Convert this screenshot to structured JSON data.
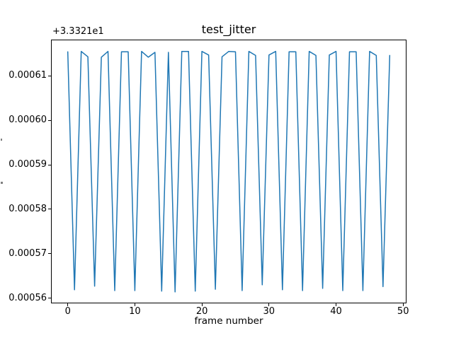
{
  "chart_data": {
    "type": "line",
    "title": "test_jitter",
    "xlabel": "frame number",
    "ylabel": "",
    "y_axis_offset_text": "+3.3321e1",
    "y_axis_offset_value": 33.321,
    "values_relative_to_offset": true,
    "line_color": "#1f77b4",
    "grid": false,
    "legend_position": "none",
    "xlim": [
      -2.4,
      50.4
    ],
    "ylim": [
      0.000559,
      0.000618
    ],
    "xticks": [
      {
        "value": 0,
        "label": "0"
      },
      {
        "value": 10,
        "label": "10"
      },
      {
        "value": 20,
        "label": "20"
      },
      {
        "value": 30,
        "label": "30"
      },
      {
        "value": 40,
        "label": "40"
      },
      {
        "value": 50,
        "label": "50"
      }
    ],
    "yticks": [
      {
        "value": 0.00056,
        "label": "0.00056"
      },
      {
        "value": 0.00057,
        "label": "0.00057"
      },
      {
        "value": 0.00058,
        "label": "0.00058"
      },
      {
        "value": 0.00059,
        "label": "0.00059"
      },
      {
        "value": 0.0006,
        "label": "0.00060"
      },
      {
        "value": 0.00061,
        "label": "0.00061"
      }
    ],
    "x": [
      0,
      1,
      2,
      3,
      4,
      5,
      6,
      7,
      8,
      9,
      10,
      11,
      12,
      13,
      14,
      15,
      16,
      17,
      18,
      19,
      20,
      21,
      22,
      23,
      24,
      25,
      26,
      27,
      28,
      29,
      30,
      31,
      32,
      33,
      34,
      35,
      36,
      37,
      38,
      39,
      40,
      41,
      42,
      43,
      44,
      45,
      46,
      47,
      48
    ],
    "y": [
      0.0006154,
      0.0005619,
      0.0006155,
      0.0006143,
      0.0005627,
      0.0006142,
      0.0006155,
      0.0005617,
      0.0006154,
      0.0006154,
      0.0005617,
      0.0006155,
      0.0006142,
      0.0006153,
      0.0005616,
      0.0006153,
      0.0005614,
      0.0006155,
      0.0006155,
      0.0005616,
      0.0006155,
      0.0006147,
      0.000562,
      0.0006143,
      0.0006155,
      0.0006154,
      0.0005617,
      0.0006155,
      0.0006146,
      0.000563,
      0.0006147,
      0.0006155,
      0.0005619,
      0.0006154,
      0.0006154,
      0.0005617,
      0.0006155,
      0.0006146,
      0.0005622,
      0.0006147,
      0.0006155,
      0.0005617,
      0.0006154,
      0.0006154,
      0.0005617,
      0.0006155,
      0.0006146,
      0.0005626,
      0.0006146
    ]
  }
}
